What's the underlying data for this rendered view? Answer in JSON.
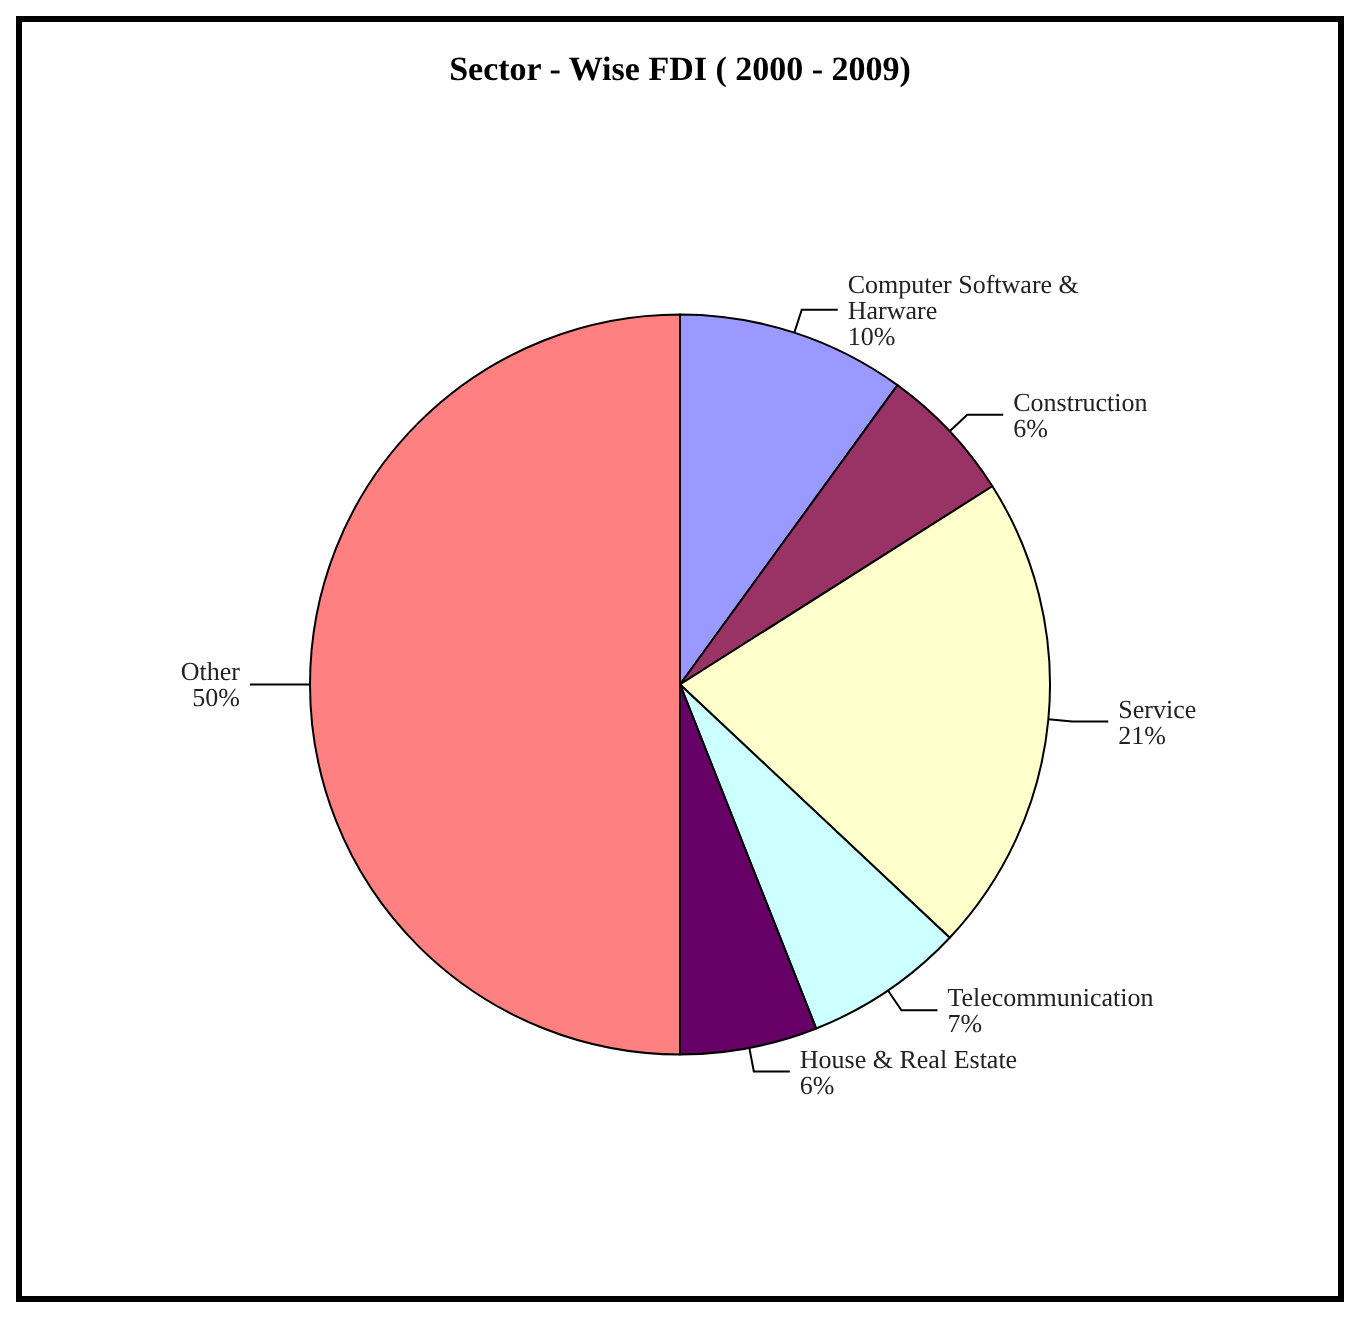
{
  "chart_data": {
    "type": "pie",
    "title": "Sector - Wise FDI ( 2000 - 2009)",
    "categories": [
      "Computer Software & Harware",
      "Construction",
      "Service",
      "Telecommunication",
      "House & Real Estate",
      "Other"
    ],
    "values": [
      10,
      6,
      21,
      7,
      6,
      50
    ],
    "value_labels": [
      "10%",
      "6%",
      "21%",
      "7%",
      "6%",
      "50%"
    ],
    "colors": [
      "#9999ff",
      "#993366",
      "#ffffcc",
      "#ccffff",
      "#660066",
      "#ff8080"
    ],
    "legend": false
  }
}
